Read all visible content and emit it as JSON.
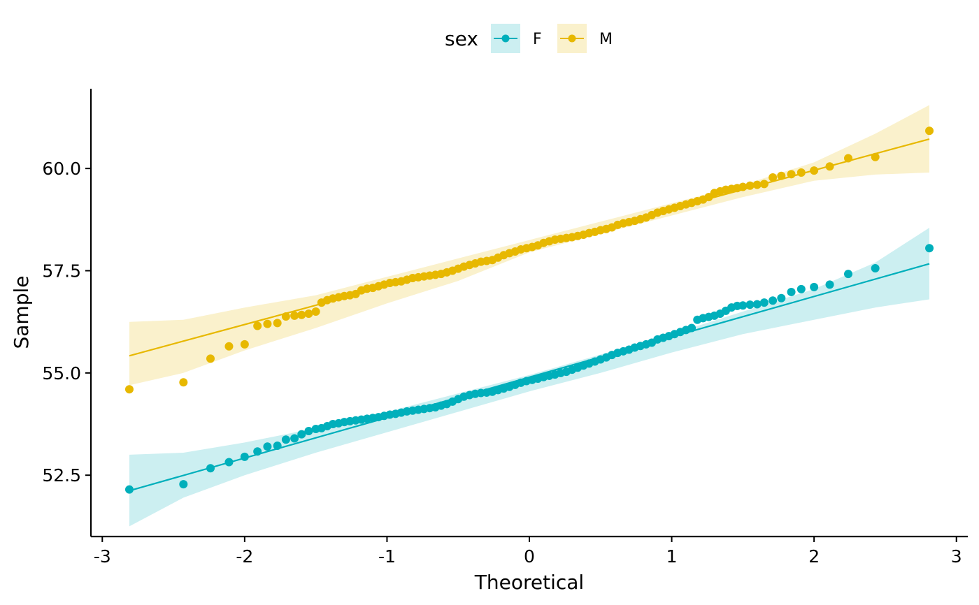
{
  "chart_data": {
    "type": "scatter",
    "title": "",
    "xlabel": "Theoretical",
    "ylabel": "Sample",
    "xlim": [
      -3.08,
      3.08
    ],
    "ylim": [
      51.0,
      61.95
    ],
    "x_ticks": [
      -3,
      -2,
      -1,
      0,
      1,
      2,
      3
    ],
    "x_tick_labels": [
      "-3",
      "-2",
      "-1",
      "0",
      "1",
      "2",
      "3"
    ],
    "y_ticks": [
      52.5,
      55.0,
      57.5,
      60.0
    ],
    "y_tick_labels": [
      "52.5",
      "55.0",
      "57.5",
      "60.0"
    ],
    "grid": false,
    "legend": {
      "title": "sex",
      "position": "top",
      "entries": [
        "F",
        "M"
      ]
    },
    "series": [
      {
        "name": "F",
        "color": "#00AFBB",
        "fit_line": {
          "x": [
            -2.81,
            2.81
          ],
          "y": [
            52.12,
            57.67
          ]
        },
        "confidence_band": {
          "x": [
            -2.81,
            -2.43,
            -2.0,
            -1.5,
            -1.0,
            -0.5,
            0.0,
            0.5,
            1.0,
            1.5,
            2.0,
            2.43,
            2.81
          ],
          "upper": [
            53.0,
            53.05,
            53.3,
            53.65,
            54.05,
            54.5,
            54.95,
            55.45,
            55.95,
            56.5,
            57.05,
            57.7,
            58.55
          ],
          "lower": [
            51.25,
            51.95,
            52.5,
            53.05,
            53.55,
            54.05,
            54.55,
            55.0,
            55.5,
            55.95,
            56.3,
            56.6,
            56.8
          ]
        },
        "points": [
          [
            -2.81,
            52.15
          ],
          [
            -2.43,
            52.28
          ],
          [
            -2.24,
            52.67
          ],
          [
            -2.11,
            52.82
          ],
          [
            -2.0,
            52.95
          ],
          [
            -1.91,
            53.08
          ],
          [
            -1.84,
            53.2
          ],
          [
            -1.77,
            53.22
          ],
          [
            -1.71,
            53.37
          ],
          [
            -1.65,
            53.4
          ],
          [
            -1.6,
            53.5
          ],
          [
            -1.55,
            53.58
          ],
          [
            -1.5,
            53.63
          ],
          [
            -1.46,
            53.65
          ],
          [
            -1.42,
            53.7
          ],
          [
            -1.38,
            53.75
          ],
          [
            -1.34,
            53.77
          ],
          [
            -1.3,
            53.8
          ],
          [
            -1.26,
            53.82
          ],
          [
            -1.22,
            53.84
          ],
          [
            -1.18,
            53.86
          ],
          [
            -1.14,
            53.88
          ],
          [
            -1.1,
            53.9
          ],
          [
            -1.06,
            53.92
          ],
          [
            -1.02,
            53.95
          ],
          [
            -0.98,
            53.98
          ],
          [
            -0.94,
            54.0
          ],
          [
            -0.9,
            54.03
          ],
          [
            -0.86,
            54.06
          ],
          [
            -0.82,
            54.08
          ],
          [
            -0.78,
            54.1
          ],
          [
            -0.74,
            54.12
          ],
          [
            -0.7,
            54.14
          ],
          [
            -0.66,
            54.16
          ],
          [
            -0.62,
            54.2
          ],
          [
            -0.58,
            54.24
          ],
          [
            -0.54,
            54.3
          ],
          [
            -0.5,
            54.36
          ],
          [
            -0.46,
            54.42
          ],
          [
            -0.42,
            54.46
          ],
          [
            -0.38,
            54.49
          ],
          [
            -0.34,
            54.51
          ],
          [
            -0.3,
            54.52
          ],
          [
            -0.26,
            54.54
          ],
          [
            -0.22,
            54.58
          ],
          [
            -0.18,
            54.62
          ],
          [
            -0.14,
            54.66
          ],
          [
            -0.1,
            54.71
          ],
          [
            -0.06,
            54.76
          ],
          [
            -0.02,
            54.8
          ],
          [
            0.02,
            54.83
          ],
          [
            0.06,
            54.86
          ],
          [
            0.1,
            54.9
          ],
          [
            0.14,
            54.93
          ],
          [
            0.18,
            54.96
          ],
          [
            0.22,
            55.0
          ],
          [
            0.26,
            55.03
          ],
          [
            0.3,
            55.08
          ],
          [
            0.34,
            55.13
          ],
          [
            0.38,
            55.18
          ],
          [
            0.42,
            55.23
          ],
          [
            0.46,
            55.28
          ],
          [
            0.5,
            55.33
          ],
          [
            0.54,
            55.38
          ],
          [
            0.58,
            55.44
          ],
          [
            0.62,
            55.49
          ],
          [
            0.66,
            55.53
          ],
          [
            0.7,
            55.57
          ],
          [
            0.74,
            55.62
          ],
          [
            0.78,
            55.66
          ],
          [
            0.82,
            55.7
          ],
          [
            0.86,
            55.74
          ],
          [
            0.9,
            55.82
          ],
          [
            0.94,
            55.86
          ],
          [
            0.98,
            55.9
          ],
          [
            1.02,
            55.95
          ],
          [
            1.06,
            56.0
          ],
          [
            1.1,
            56.05
          ],
          [
            1.14,
            56.1
          ],
          [
            1.18,
            56.3
          ],
          [
            1.22,
            56.34
          ],
          [
            1.26,
            56.37
          ],
          [
            1.3,
            56.4
          ],
          [
            1.34,
            56.45
          ],
          [
            1.38,
            56.52
          ],
          [
            1.42,
            56.6
          ],
          [
            1.46,
            56.64
          ],
          [
            1.5,
            56.65
          ],
          [
            1.55,
            56.67
          ],
          [
            1.6,
            56.68
          ],
          [
            1.65,
            56.72
          ],
          [
            1.71,
            56.77
          ],
          [
            1.77,
            56.83
          ],
          [
            1.84,
            56.98
          ],
          [
            1.91,
            57.05
          ],
          [
            2.0,
            57.1
          ],
          [
            2.11,
            57.16
          ],
          [
            2.24,
            57.42
          ],
          [
            2.43,
            57.56
          ],
          [
            2.81,
            58.05
          ]
        ]
      },
      {
        "name": "M",
        "color": "#E7B800",
        "fit_line": {
          "x": [
            -2.81,
            2.81
          ],
          "y": [
            55.42,
            60.72
          ]
        },
        "confidence_band": {
          "x": [
            -2.81,
            -2.43,
            -2.0,
            -1.5,
            -1.0,
            -0.5,
            0.0,
            0.5,
            1.0,
            1.5,
            2.0,
            2.43,
            2.81
          ],
          "upper": [
            56.25,
            56.3,
            56.6,
            56.9,
            57.35,
            57.8,
            58.25,
            58.7,
            59.15,
            59.6,
            60.15,
            60.85,
            61.55
          ],
          "lower": [
            54.7,
            55.0,
            55.55,
            56.1,
            56.7,
            57.25,
            57.95,
            58.4,
            58.85,
            59.3,
            59.7,
            59.85,
            59.9
          ]
        },
        "points": [
          [
            -2.81,
            54.6
          ],
          [
            -2.43,
            54.77
          ],
          [
            -2.24,
            55.35
          ],
          [
            -2.11,
            55.65
          ],
          [
            -2.0,
            55.7
          ],
          [
            -1.91,
            56.15
          ],
          [
            -1.84,
            56.2
          ],
          [
            -1.77,
            56.22
          ],
          [
            -1.71,
            56.38
          ],
          [
            -1.65,
            56.4
          ],
          [
            -1.6,
            56.42
          ],
          [
            -1.55,
            56.45
          ],
          [
            -1.5,
            56.5
          ],
          [
            -1.46,
            56.72
          ],
          [
            -1.42,
            56.78
          ],
          [
            -1.38,
            56.82
          ],
          [
            -1.34,
            56.85
          ],
          [
            -1.3,
            56.88
          ],
          [
            -1.26,
            56.9
          ],
          [
            -1.22,
            56.93
          ],
          [
            -1.18,
            57.02
          ],
          [
            -1.14,
            57.06
          ],
          [
            -1.1,
            57.08
          ],
          [
            -1.06,
            57.12
          ],
          [
            -1.02,
            57.16
          ],
          [
            -0.98,
            57.2
          ],
          [
            -0.94,
            57.22
          ],
          [
            -0.9,
            57.24
          ],
          [
            -0.86,
            57.28
          ],
          [
            -0.82,
            57.32
          ],
          [
            -0.78,
            57.34
          ],
          [
            -0.74,
            57.36
          ],
          [
            -0.7,
            57.38
          ],
          [
            -0.66,
            57.4
          ],
          [
            -0.62,
            57.42
          ],
          [
            -0.58,
            57.46
          ],
          [
            -0.54,
            57.5
          ],
          [
            -0.5,
            57.55
          ],
          [
            -0.46,
            57.6
          ],
          [
            -0.42,
            57.64
          ],
          [
            -0.38,
            57.68
          ],
          [
            -0.34,
            57.72
          ],
          [
            -0.3,
            57.74
          ],
          [
            -0.26,
            57.76
          ],
          [
            -0.22,
            57.82
          ],
          [
            -0.18,
            57.88
          ],
          [
            -0.14,
            57.93
          ],
          [
            -0.1,
            57.97
          ],
          [
            -0.06,
            58.02
          ],
          [
            -0.02,
            58.05
          ],
          [
            0.02,
            58.08
          ],
          [
            0.06,
            58.12
          ],
          [
            0.1,
            58.18
          ],
          [
            0.14,
            58.22
          ],
          [
            0.18,
            58.26
          ],
          [
            0.22,
            58.28
          ],
          [
            0.26,
            58.3
          ],
          [
            0.3,
            58.32
          ],
          [
            0.34,
            58.35
          ],
          [
            0.38,
            58.38
          ],
          [
            0.42,
            58.42
          ],
          [
            0.46,
            58.45
          ],
          [
            0.5,
            58.49
          ],
          [
            0.54,
            58.52
          ],
          [
            0.58,
            58.56
          ],
          [
            0.62,
            58.62
          ],
          [
            0.66,
            58.66
          ],
          [
            0.7,
            58.69
          ],
          [
            0.74,
            58.72
          ],
          [
            0.78,
            58.76
          ],
          [
            0.82,
            58.8
          ],
          [
            0.86,
            58.86
          ],
          [
            0.9,
            58.92
          ],
          [
            0.94,
            58.96
          ],
          [
            0.98,
            59.0
          ],
          [
            1.02,
            59.04
          ],
          [
            1.06,
            59.08
          ],
          [
            1.1,
            59.12
          ],
          [
            1.14,
            59.16
          ],
          [
            1.18,
            59.2
          ],
          [
            1.22,
            59.24
          ],
          [
            1.26,
            59.3
          ],
          [
            1.3,
            59.4
          ],
          [
            1.34,
            59.44
          ],
          [
            1.38,
            59.48
          ],
          [
            1.42,
            59.5
          ],
          [
            1.46,
            59.52
          ],
          [
            1.5,
            59.55
          ],
          [
            1.55,
            59.58
          ],
          [
            1.6,
            59.6
          ],
          [
            1.65,
            59.62
          ],
          [
            1.71,
            59.78
          ],
          [
            1.77,
            59.82
          ],
          [
            1.84,
            59.86
          ],
          [
            1.91,
            59.9
          ],
          [
            2.0,
            59.95
          ],
          [
            2.11,
            60.05
          ],
          [
            2.24,
            60.25
          ],
          [
            2.43,
            60.28
          ],
          [
            2.81,
            60.92
          ]
        ]
      }
    ]
  }
}
